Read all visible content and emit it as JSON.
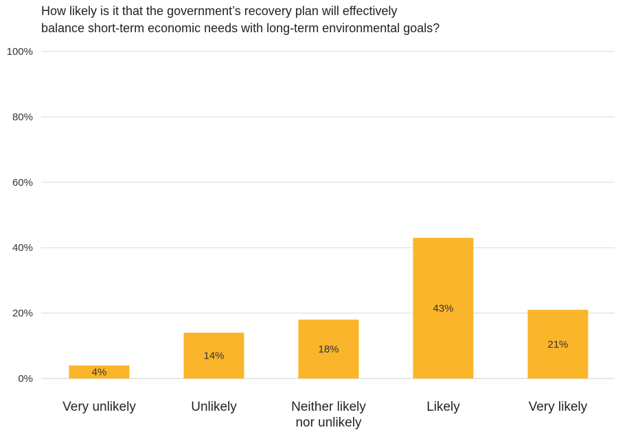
{
  "chart_data": {
    "type": "bar",
    "title_lines": [
      "How likely is it that the government’s recovery plan will effectively",
      "balance short-term economic needs with long-term environmental goals?"
    ],
    "categories": [
      [
        "Very unlikely"
      ],
      [
        "Unlikely"
      ],
      [
        "Neither likely",
        "nor unlikely"
      ],
      [
        "Likely"
      ],
      [
        "Very likely"
      ]
    ],
    "values": [
      4,
      14,
      18,
      43,
      21
    ],
    "data_labels": [
      "4%",
      "14%",
      "18%",
      "43%",
      "21%"
    ],
    "y_ticks": [
      0,
      20,
      40,
      60,
      80,
      100
    ],
    "y_tick_labels": [
      "0%",
      "20%",
      "40%",
      "60%",
      "80%",
      "100%"
    ],
    "ylim": [
      0,
      100
    ],
    "xlabel": "",
    "ylabel": "",
    "grid": true,
    "legend": "none",
    "bar_color": "#FBB52B",
    "grid_color": "#d9d9d9"
  }
}
